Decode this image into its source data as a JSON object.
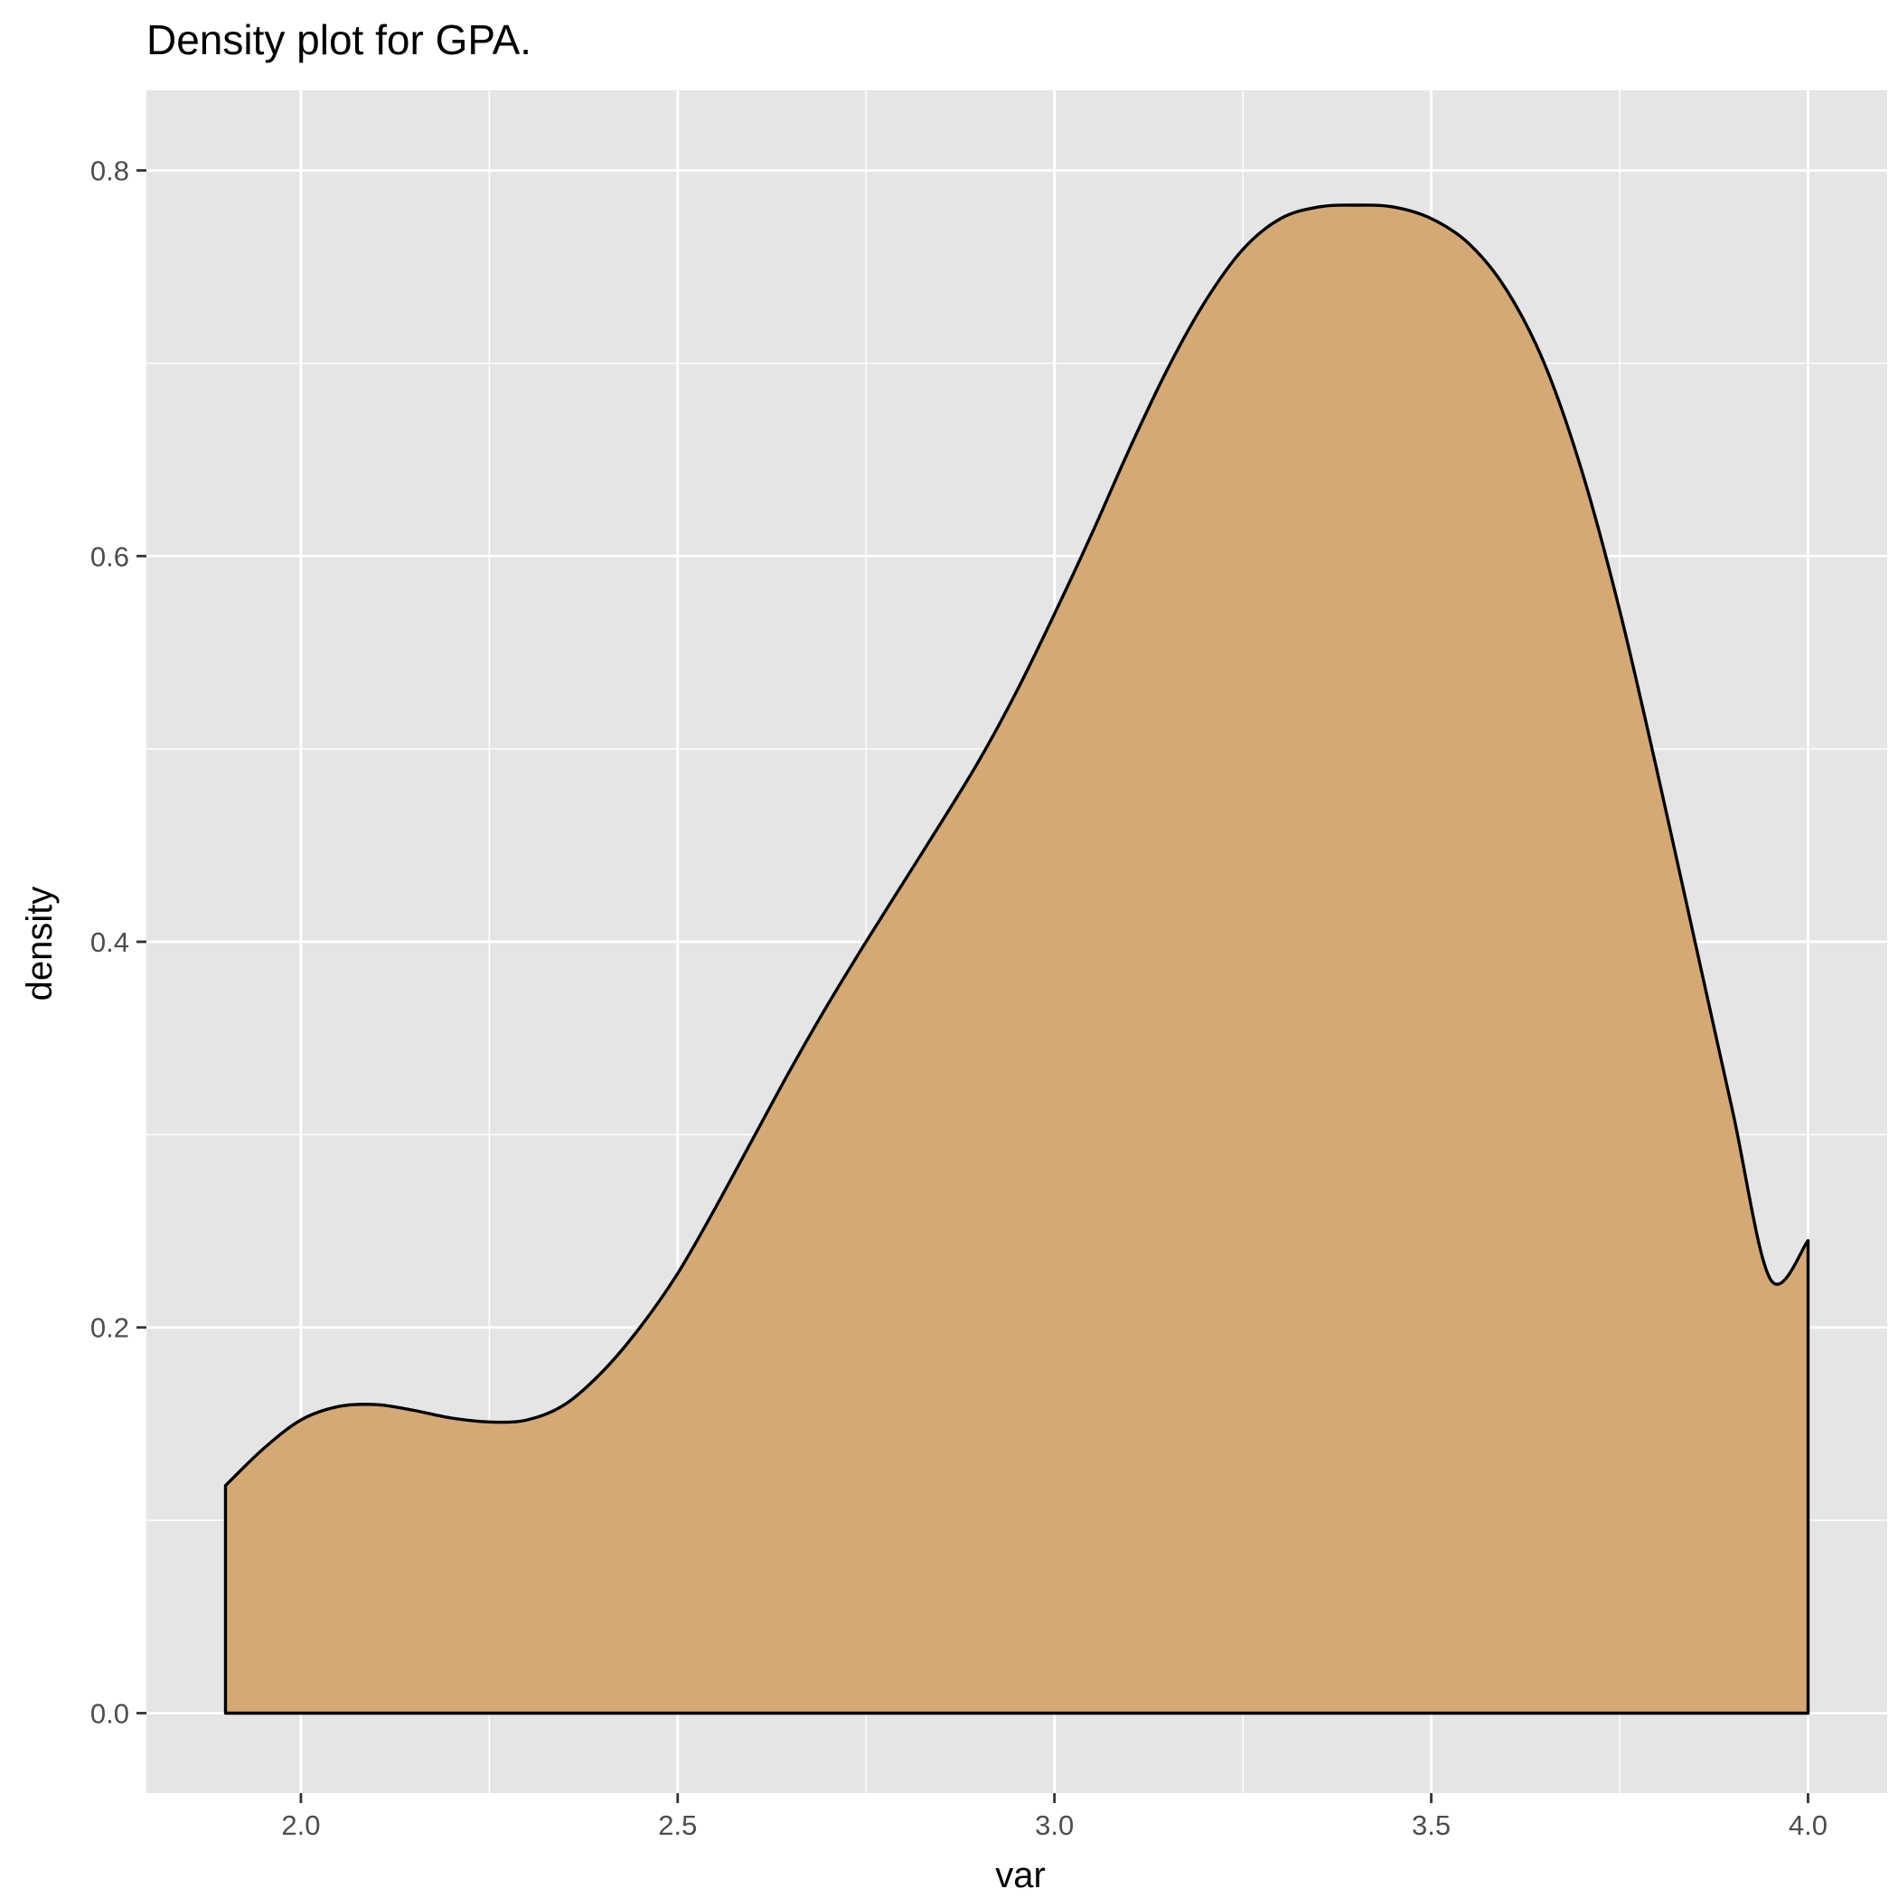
{
  "chart_data": {
    "type": "area",
    "title": "Density plot for GPA.",
    "xlabel": "var",
    "ylabel": "density",
    "xlim": [
      1.795,
      4.105
    ],
    "ylim": [
      -0.0415,
      0.8415
    ],
    "x_ticks": [
      2.0,
      2.5,
      3.0,
      3.5,
      4.0
    ],
    "x_tick_labels": [
      "2.0",
      "2.5",
      "3.0",
      "3.5",
      "4.0"
    ],
    "y_ticks": [
      0.0,
      0.2,
      0.4,
      0.6,
      0.8
    ],
    "y_tick_labels": [
      "0.0",
      "0.2",
      "0.4",
      "0.6",
      "0.8"
    ],
    "x_minor_ticks": [
      2.25,
      2.75,
      3.25,
      3.75
    ],
    "y_minor_ticks": [
      0.1,
      0.3,
      0.5,
      0.7
    ],
    "grid": true,
    "panel_background": "#e5e5e5",
    "grid_color": "#ffffff",
    "fill_color": "#d4a976",
    "line_color": "#000000",
    "series": [
      {
        "x": [
          1.9,
          1.95,
          2.0,
          2.05,
          2.1,
          2.15,
          2.2,
          2.25,
          2.3,
          2.35,
          2.4,
          2.45,
          2.5,
          2.55,
          2.6,
          2.65,
          2.7,
          2.75,
          2.8,
          2.85,
          2.9,
          2.95,
          3.0,
          3.05,
          3.1,
          3.15,
          3.2,
          3.25,
          3.3,
          3.35,
          3.4,
          3.45,
          3.5,
          3.55,
          3.6,
          3.65,
          3.7,
          3.75,
          3.8,
          3.85,
          3.9,
          3.95,
          4.0
        ],
        "y": [
          0.118,
          0.137,
          0.152,
          0.159,
          0.16,
          0.157,
          0.153,
          0.151,
          0.152,
          0.16,
          0.177,
          0.2,
          0.228,
          0.262,
          0.298,
          0.334,
          0.368,
          0.4,
          0.431,
          0.462,
          0.494,
          0.53,
          0.57,
          0.612,
          0.656,
          0.697,
          0.732,
          0.759,
          0.775,
          0.781,
          0.782,
          0.781,
          0.775,
          0.762,
          0.738,
          0.7,
          0.644,
          0.572,
          0.488,
          0.4,
          0.312,
          0.225,
          0.245
        ]
      }
    ]
  }
}
